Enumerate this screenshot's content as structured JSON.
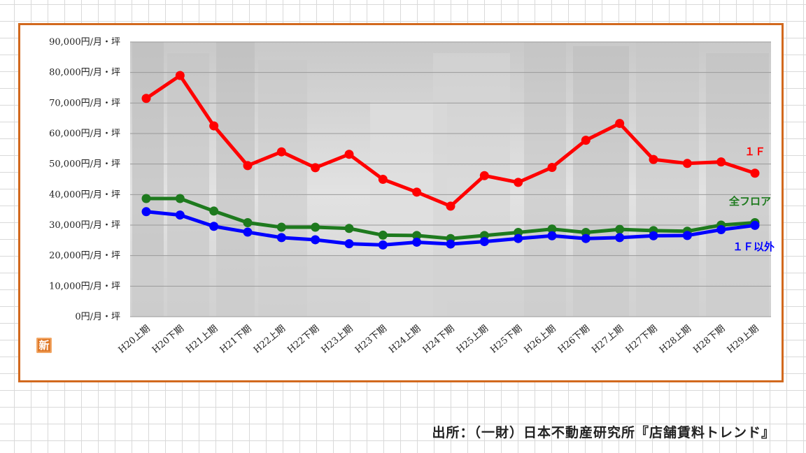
{
  "source_note": "出所：（一財）日本不動産研究所『店舗賃料トレンド』",
  "badge": "新",
  "chart_data": {
    "type": "line",
    "unit_suffix": "円/月・坪",
    "ylim": [
      0,
      90000
    ],
    "yticks": [
      0,
      10000,
      20000,
      30000,
      40000,
      50000,
      60000,
      70000,
      80000,
      90000
    ],
    "ytick_labels": [
      "0円/月・坪",
      "10,000円/月・坪",
      "20,000円/月・坪",
      "30,000円/月・坪",
      "40,000円/月・坪",
      "50,000円/月・坪",
      "60,000円/月・坪",
      "70,000円/月・坪",
      "80,000円/月・坪",
      "90,000円/月・坪"
    ],
    "grid": true,
    "categories": [
      "H20上期",
      "H20下期",
      "H21上期",
      "H21下期",
      "H22上期",
      "H22下期",
      "H23上期",
      "H23下期",
      "H24上期",
      "H24下期",
      "H25上期",
      "H25下期",
      "H26上期",
      "H26下期",
      "H27上期",
      "H27下期",
      "H28上期",
      "H28下期",
      "H29上期"
    ],
    "series": [
      {
        "name": "１Ｆ",
        "color": "#ff0000",
        "values": [
          71500,
          79000,
          62500,
          49500,
          54000,
          48800,
          53200,
          45000,
          40800,
          36200,
          46200,
          44000,
          48900,
          57800,
          63300,
          51500,
          50200,
          50700,
          47000
        ]
      },
      {
        "name": "全フロア",
        "color": "#1e7a1e",
        "values": [
          38700,
          38700,
          34600,
          30800,
          29300,
          29300,
          28900,
          26700,
          26600,
          25600,
          26600,
          27600,
          28700,
          27600,
          28600,
          28200,
          28000,
          30000,
          30800
        ]
      },
      {
        "name": "１Ｆ以外",
        "color": "#0000ff",
        "values": [
          34400,
          33300,
          29600,
          27700,
          25900,
          25200,
          23900,
          23500,
          24400,
          23800,
          24600,
          25600,
          26500,
          25600,
          25900,
          26500,
          26600,
          28500,
          29900
        ]
      }
    ]
  }
}
